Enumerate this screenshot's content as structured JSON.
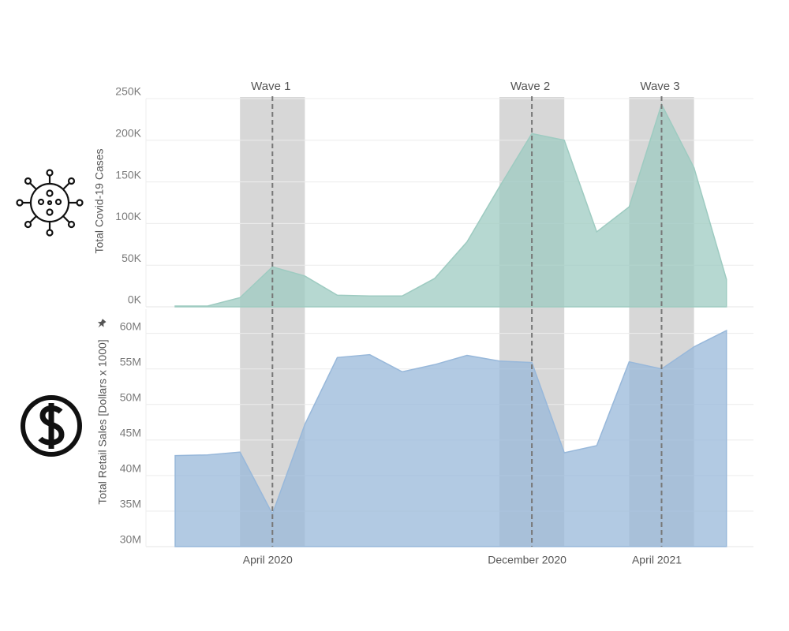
{
  "chart_data": [
    {
      "type": "area",
      "ylabel": "Total Covid-19 Cases",
      "color": "#9ecbc1",
      "values": [
        1000,
        1000,
        11000,
        48000,
        37000,
        14000,
        13000,
        13000,
        34000,
        78000,
        144000,
        208000,
        200000,
        90000,
        120000,
        243000,
        167000,
        33000
      ],
      "ylim": [
        0,
        250000
      ],
      "yticks": [
        {
          "value": 0,
          "label": "0K"
        },
        {
          "value": 50000,
          "label": "50K"
        },
        {
          "value": 100000,
          "label": "100K"
        },
        {
          "value": 150000,
          "label": "150K"
        },
        {
          "value": 200000,
          "label": "200K"
        },
        {
          "value": 250000,
          "label": "250K"
        }
      ],
      "bands": [
        {
          "label": "Wave 1",
          "start": 2,
          "center": 3,
          "end": 4
        },
        {
          "label": "Wave 2",
          "start": 10,
          "center": 11,
          "end": 12
        },
        {
          "label": "Wave 3",
          "start": 14,
          "center": 15,
          "end": 16
        }
      ],
      "grid": true
    },
    {
      "type": "area",
      "ylabel": "Total Retail Sales [Dollars x 1000]",
      "color": "#98b8da",
      "categories": [
        null,
        null,
        null,
        "April 2020",
        null,
        null,
        null,
        null,
        null,
        null,
        null,
        "December 2020",
        null,
        null,
        null,
        "April 2021",
        null,
        null
      ],
      "values": [
        42800000,
        42900000,
        43300000,
        34600000,
        47200000,
        56600000,
        57000000,
        54600000,
        55600000,
        56900000,
        56100000,
        55900000,
        43200000,
        44200000,
        56000000,
        55000000,
        58100000,
        60400000
      ],
      "ylim": [
        30000000,
        63400000
      ],
      "yticks": [
        {
          "value": 30000000,
          "label": "30M"
        },
        {
          "value": 35000000,
          "label": "35M"
        },
        {
          "value": 40000000,
          "label": "40M"
        },
        {
          "value": 45000000,
          "label": "45M"
        },
        {
          "value": 50000000,
          "label": "50M"
        },
        {
          "value": 55000000,
          "label": "55M"
        },
        {
          "value": 60000000,
          "label": "60M"
        }
      ],
      "grid": true
    }
  ]
}
